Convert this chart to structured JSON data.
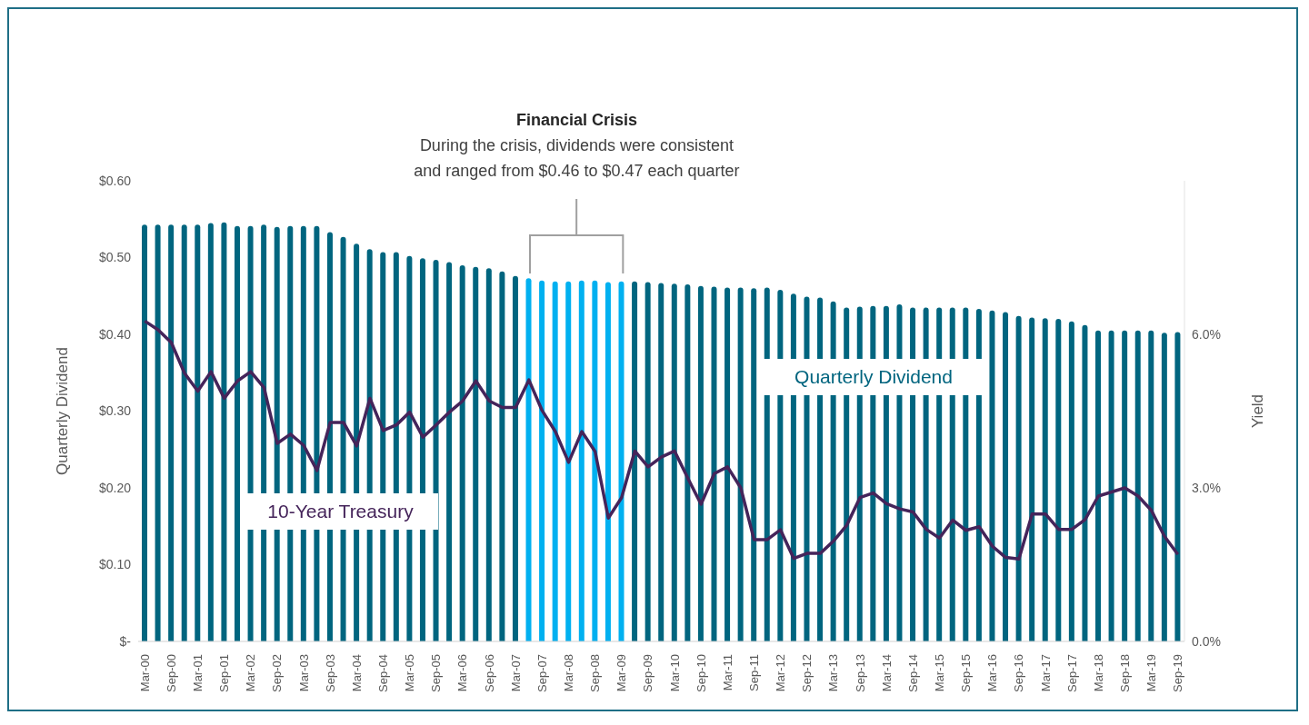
{
  "chart_data": {
    "type": "bar",
    "ylabel": "Quarterly Dividend",
    "y2label": "Yield",
    "annotations": [
      "Financial Crisis",
      "During the crisis, dividends were consistent",
      "and ranged from $0.46 to $0.47 each quarter"
    ],
    "categories": [
      "Mar-00",
      null,
      "Sep-00",
      null,
      "Mar-01",
      null,
      "Sep-01",
      null,
      "Mar-02",
      null,
      "Sep-02",
      null,
      "Mar-03",
      null,
      "Sep-03",
      null,
      "Mar-04",
      null,
      "Sep-04",
      null,
      "Mar-05",
      null,
      "Sep-05",
      null,
      "Mar-06",
      null,
      "Sep-06",
      null,
      "Mar-07",
      null,
      "Sep-07",
      null,
      "Mar-08",
      null,
      "Sep-08",
      null,
      "Mar-09",
      null,
      "Sep-09",
      null,
      "Mar-10",
      null,
      "Sep-10",
      null,
      "Mar-11",
      null,
      "Sep-11",
      null,
      "Mar-12",
      null,
      "Sep-12",
      null,
      "Mar-13",
      null,
      "Sep-13",
      null,
      "Mar-14",
      null,
      "Sep-14",
      null,
      "Mar-15",
      null,
      "Sep-15",
      null,
      "Mar-16",
      null,
      "Sep-16",
      null,
      "Mar-17",
      null,
      "Sep-17",
      null,
      "Mar-18",
      null,
      "Sep-18",
      null,
      "Mar-19",
      null,
      "Sep-19"
    ],
    "series": [
      {
        "name": "Quarterly Dividend",
        "color": "#00657f",
        "colors": [
          "#00657f",
          "#00657f",
          "#00657f",
          "#00657f",
          "#00657f",
          "#00657f",
          "#00657f",
          "#00657f",
          "#00657f",
          "#00657f",
          "#00657f",
          "#00657f",
          "#00657f",
          "#00657f",
          "#00657f",
          "#00657f",
          "#00657f",
          "#00657f",
          "#00657f",
          "#00657f",
          "#00657f",
          "#00657f",
          "#00657f",
          "#00657f",
          "#00657f",
          "#00657f",
          "#00657f",
          "#00657f",
          "#00657f",
          "#00b0f0",
          "#00b0f0",
          "#00b0f0",
          "#00b0f0",
          "#00b0f0",
          "#00b0f0",
          "#00b0f0",
          "#00b0f0",
          "#00657f",
          "#00657f",
          "#00657f",
          "#00657f",
          "#00657f",
          "#00657f",
          "#00657f",
          "#00657f",
          "#00657f",
          "#00657f",
          "#00657f",
          "#00657f",
          "#00657f",
          "#00657f",
          "#00657f",
          "#00657f",
          "#00657f",
          "#00657f",
          "#00657f",
          "#00657f",
          "#00657f",
          "#00657f",
          "#00657f",
          "#00657f",
          "#00657f",
          "#00657f",
          "#00657f",
          "#00657f",
          "#00657f",
          "#00657f",
          "#00657f",
          "#00657f",
          "#00657f",
          "#00657f",
          "#00657f",
          "#00657f",
          "#00657f",
          "#00657f",
          "#00657f",
          "#00657f",
          "#00657f",
          "#00657f"
        ],
        "values": [
          0.543,
          0.543,
          0.543,
          0.543,
          0.543,
          0.545,
          0.546,
          0.541,
          0.541,
          0.543,
          0.54,
          0.541,
          0.541,
          0.541,
          0.533,
          0.527,
          0.518,
          0.511,
          0.507,
          0.507,
          0.502,
          0.499,
          0.497,
          0.494,
          0.49,
          0.488,
          0.486,
          0.482,
          0.476,
          0.473,
          0.47,
          0.469,
          0.469,
          0.47,
          0.47,
          0.468,
          0.469,
          0.469,
          0.468,
          0.467,
          0.466,
          0.465,
          0.463,
          0.462,
          0.461,
          0.461,
          0.46,
          0.461,
          0.458,
          0.453,
          0.449,
          0.448,
          0.443,
          0.435,
          0.436,
          0.437,
          0.437,
          0.439,
          0.435,
          0.435,
          0.435,
          0.435,
          0.435,
          0.433,
          0.431,
          0.429,
          0.424,
          0.422,
          0.421,
          0.42,
          0.417,
          0.412,
          0.405,
          0.405,
          0.405,
          0.405,
          0.405,
          0.402,
          0.403
        ]
      },
      {
        "name": "10-Year Treasury",
        "type": "line",
        "axis": "y2",
        "color": "#45245a",
        "values": [
          6.26,
          6.09,
          5.84,
          5.24,
          4.89,
          5.27,
          4.75,
          5.09,
          5.27,
          4.96,
          3.87,
          4.05,
          3.83,
          3.34,
          4.28,
          4.28,
          3.82,
          4.75,
          4.12,
          4.23,
          4.48,
          3.99,
          4.23,
          4.48,
          4.7,
          5.09,
          4.7,
          4.57,
          4.57,
          5.11,
          4.51,
          4.1,
          3.5,
          4.1,
          3.71,
          2.41,
          2.81,
          3.72,
          3.41,
          3.6,
          3.72,
          3.19,
          2.68,
          3.28,
          3.41,
          3.0,
          1.99,
          1.99,
          2.18,
          1.62,
          1.72,
          1.72,
          1.96,
          2.27,
          2.81,
          2.9,
          2.69,
          2.59,
          2.53,
          2.19,
          2.02,
          2.37,
          2.17,
          2.24,
          1.86,
          1.64,
          1.61,
          2.49,
          2.49,
          2.19,
          2.19,
          2.38,
          2.84,
          2.92,
          3.0,
          2.84,
          2.56,
          2.05,
          1.7
        ]
      }
    ],
    "ylim": [
      0,
      0.6
    ],
    "yticks": [
      {
        "value": 0,
        "label": "$-"
      },
      {
        "value": 0.1,
        "label": "$0.10"
      },
      {
        "value": 0.2,
        "label": "$0.20"
      },
      {
        "value": 0.3,
        "label": "$0.30"
      },
      {
        "value": 0.4,
        "label": "$0.40"
      },
      {
        "value": 0.5,
        "label": "$0.50"
      },
      {
        "value": 0.6,
        "label": "$0.60"
      }
    ],
    "y2lim": [
      0,
      9
    ],
    "y2ticks": [
      {
        "value": 0,
        "label": "0.0%"
      },
      {
        "value": 3,
        "label": "3.0%"
      },
      {
        "value": 6,
        "label": "6.0%"
      }
    ],
    "grid": false,
    "legend": false,
    "marker": "none",
    "line_style": "solid"
  }
}
